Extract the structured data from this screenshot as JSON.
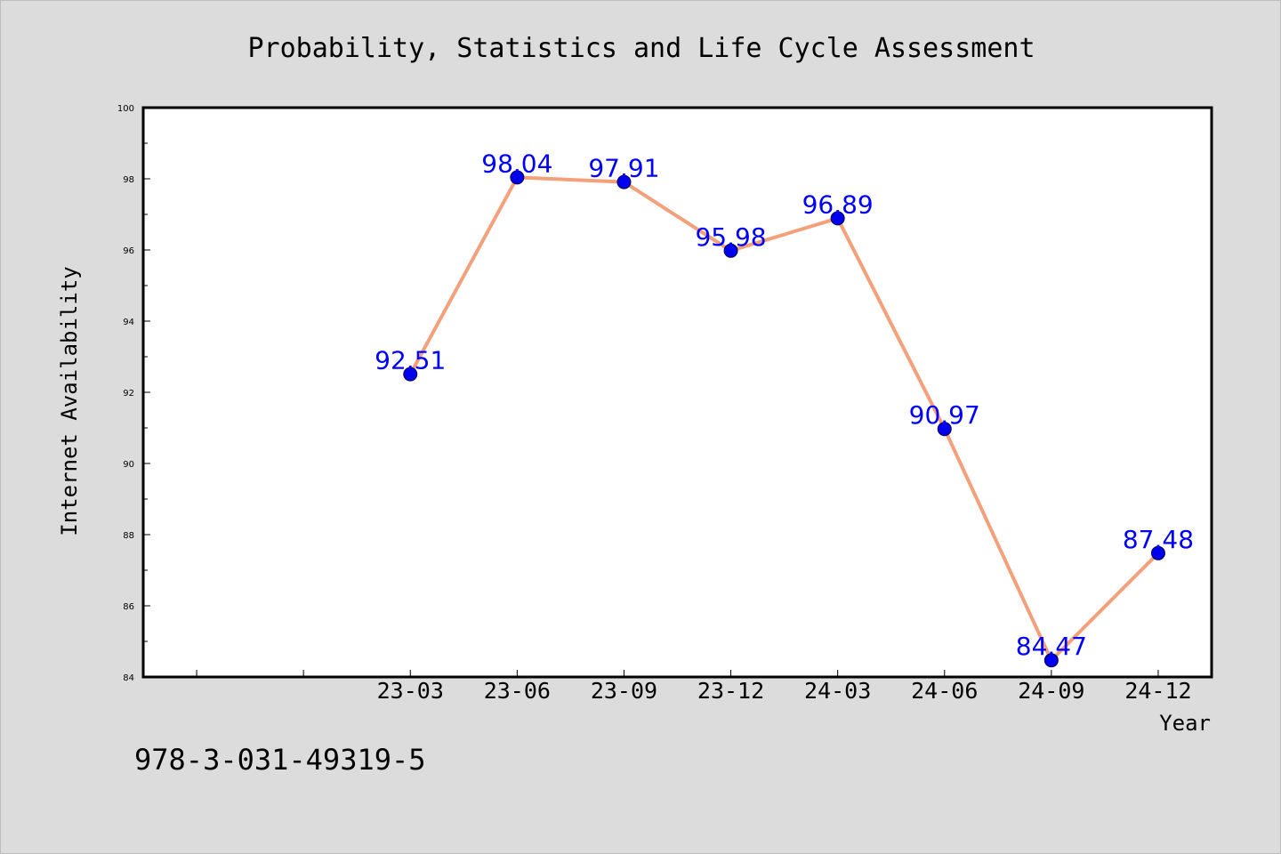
{
  "chart_data": {
    "type": "line",
    "title": "Probability, Statistics and Life Cycle Assessment",
    "xlabel": "Year",
    "ylabel": "Internet Availability",
    "categories": [
      "23-03",
      "23-06",
      "23-09",
      "23-12",
      "24-03",
      "24-06",
      "24-09",
      "24-12"
    ],
    "series": [
      {
        "values": [
          92.51,
          98.04,
          97.91,
          95.98,
          96.89,
          90.97,
          84.47,
          87.48
        ]
      }
    ],
    "data_labels": [
      "92.51",
      "98.04",
      "97.91",
      "95.98",
      "96.89",
      "90.97",
      "84.47",
      "87.48"
    ],
    "ylim": [
      84,
      100
    ],
    "yticks": [
      84,
      86,
      88,
      90,
      92,
      94,
      96,
      98,
      100
    ],
    "x_slot_count": 10,
    "first_category_slot": 2,
    "grid": false,
    "legend": "none",
    "line_color": "#f4a07a",
    "marker_color": "#0000ee",
    "label_color": "#0000ff"
  },
  "footnote": "978-3-031-49319-5"
}
